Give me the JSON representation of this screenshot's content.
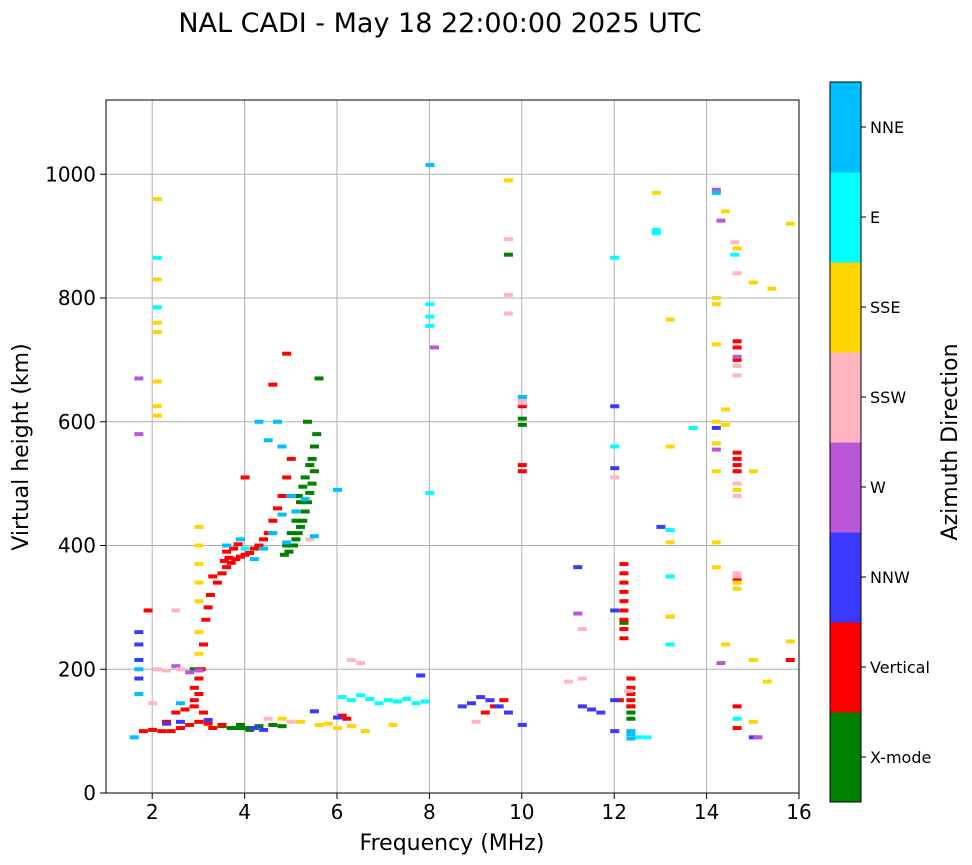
{
  "chart_data": {
    "type": "scatter",
    "title": "NAL CADI - May 18 22:00:00 2025 UTC",
    "xlabel": "Frequency (MHz)",
    "ylabel": "Virtual height (km)",
    "xlim": [
      1,
      16
    ],
    "ylim": [
      0,
      1120
    ],
    "xticks": [
      2,
      4,
      6,
      8,
      10,
      12,
      14,
      16
    ],
    "yticks": [
      0,
      200,
      400,
      600,
      800,
      1000
    ],
    "grid": true,
    "colorbar": {
      "label": "Azimuth Direction",
      "categories": [
        "X-mode",
        "Vertical",
        "NNW",
        "W",
        "SSW",
        "SSE",
        "E",
        "NNE"
      ],
      "colors": [
        "#008000",
        "#ff0000",
        "#3a3aff",
        "#b957d8",
        "#ffb6c1",
        "#ffd700",
        "#00ffff",
        "#00bfff"
      ]
    },
    "series": [
      {
        "name": "X-mode",
        "points": [
          [
            3.7,
            105
          ],
          [
            3.85,
            105
          ],
          [
            4.0,
            105
          ],
          [
            4.15,
            105
          ],
          [
            4.3,
            108
          ],
          [
            4.6,
            110
          ],
          [
            4.8,
            108
          ],
          [
            3.5,
            108
          ],
          [
            3.9,
            110
          ],
          [
            4.1,
            102
          ],
          [
            2.9,
            200
          ],
          [
            4.85,
            385
          ],
          [
            4.95,
            390
          ],
          [
            5.05,
            400
          ],
          [
            5.1,
            410
          ],
          [
            5.15,
            420
          ],
          [
            5.2,
            430
          ],
          [
            5.25,
            440
          ],
          [
            5.3,
            455
          ],
          [
            5.35,
            470
          ],
          [
            5.4,
            485
          ],
          [
            5.45,
            500
          ],
          [
            5.5,
            520
          ],
          [
            5.45,
            540
          ],
          [
            5.5,
            560
          ],
          [
            5.55,
            580
          ],
          [
            5.2,
            470
          ],
          [
            5.3,
            510
          ],
          [
            5.4,
            530
          ],
          [
            5.1,
            440
          ],
          [
            5.0,
            420
          ],
          [
            4.9,
            400
          ],
          [
            5.35,
            600
          ],
          [
            5.15,
            480
          ],
          [
            5.25,
            495
          ],
          [
            5.6,
            670
          ],
          [
            9.7,
            870
          ],
          [
            10.0,
            605
          ],
          [
            10.0,
            595
          ],
          [
            12.2,
            275
          ],
          [
            12.35,
            120
          ],
          [
            12.35,
            130
          ],
          [
            12.35,
            140
          ],
          [
            13.2,
            285
          ]
        ]
      },
      {
        "name": "Vertical",
        "points": [
          [
            3.4,
            340
          ],
          [
            3.5,
            355
          ],
          [
            3.6,
            365
          ],
          [
            3.7,
            372
          ],
          [
            3.8,
            378
          ],
          [
            3.9,
            382
          ],
          [
            4.0,
            385
          ],
          [
            4.1,
            388
          ],
          [
            4.2,
            395
          ],
          [
            4.3,
            400
          ],
          [
            4.4,
            410
          ],
          [
            4.5,
            420
          ],
          [
            4.6,
            440
          ],
          [
            4.7,
            460
          ],
          [
            4.8,
            480
          ],
          [
            4.9,
            510
          ],
          [
            5.0,
            540
          ],
          [
            3.55,
            375
          ],
          [
            3.65,
            380
          ],
          [
            3.75,
            395
          ],
          [
            3.85,
            402
          ],
          [
            3.6,
            390
          ],
          [
            3.3,
            350
          ],
          [
            3.25,
            320
          ],
          [
            3.15,
            280
          ],
          [
            3.1,
            240
          ],
          [
            3.05,
            200
          ],
          [
            3.0,
            160
          ],
          [
            3.2,
            300
          ],
          [
            3.0,
            185
          ],
          [
            2.4,
            100
          ],
          [
            2.6,
            105
          ],
          [
            2.8,
            110
          ],
          [
            3.0,
            115
          ],
          [
            3.2,
            112
          ],
          [
            2.3,
            115
          ],
          [
            2.5,
            130
          ],
          [
            2.7,
            135
          ],
          [
            2.9,
            140
          ],
          [
            3.1,
            130
          ],
          [
            2.2,
            100
          ],
          [
            2.0,
            102
          ],
          [
            1.8,
            100
          ],
          [
            2.9,
            170
          ],
          [
            2.9,
            150
          ],
          [
            3.3,
            105
          ],
          [
            3.5,
            110
          ],
          [
            1.9,
            295
          ],
          [
            4.0,
            510
          ],
          [
            4.9,
            710
          ],
          [
            4.6,
            660
          ],
          [
            6.1,
            125
          ],
          [
            6.2,
            120
          ],
          [
            9.2,
            130
          ],
          [
            9.4,
            140
          ],
          [
            9.6,
            150
          ],
          [
            10.0,
            530
          ],
          [
            10.0,
            520
          ],
          [
            10.0,
            625
          ],
          [
            12.2,
            370
          ],
          [
            12.2,
            355
          ],
          [
            12.2,
            340
          ],
          [
            12.2,
            325
          ],
          [
            12.2,
            310
          ],
          [
            12.2,
            295
          ],
          [
            12.2,
            280
          ],
          [
            12.2,
            265
          ],
          [
            12.2,
            250
          ],
          [
            12.35,
            185
          ],
          [
            12.35,
            170
          ],
          [
            12.35,
            160
          ],
          [
            12.35,
            150
          ],
          [
            12.35,
            140
          ],
          [
            14.65,
            550
          ],
          [
            14.65,
            540
          ],
          [
            14.65,
            530
          ],
          [
            14.65,
            520
          ],
          [
            14.65,
            880
          ],
          [
            14.65,
            730
          ],
          [
            14.65,
            720
          ],
          [
            14.65,
            700
          ],
          [
            14.65,
            345
          ],
          [
            14.65,
            105
          ],
          [
            14.65,
            140
          ],
          [
            15.8,
            215
          ],
          [
            12.1,
            150
          ]
        ]
      },
      {
        "name": "NNW",
        "points": [
          [
            1.7,
            260
          ],
          [
            1.7,
            240
          ],
          [
            1.7,
            215
          ],
          [
            1.7,
            185
          ],
          [
            2.3,
            112
          ],
          [
            2.6,
            115
          ],
          [
            3.2,
            118
          ],
          [
            4.2,
            105
          ],
          [
            4.4,
            102
          ],
          [
            5.5,
            132
          ],
          [
            6.0,
            122
          ],
          [
            7.8,
            190
          ],
          [
            8.7,
            140
          ],
          [
            8.9,
            145
          ],
          [
            9.1,
            155
          ],
          [
            9.3,
            150
          ],
          [
            9.5,
            140
          ],
          [
            9.7,
            130
          ],
          [
            10.0,
            110
          ],
          [
            11.2,
            365
          ],
          [
            11.3,
            140
          ],
          [
            11.5,
            135
          ],
          [
            11.7,
            130
          ],
          [
            12.0,
            625
          ],
          [
            12.0,
            525
          ],
          [
            12.0,
            295
          ],
          [
            12.0,
            100
          ],
          [
            12.0,
            150
          ],
          [
            13.0,
            430
          ],
          [
            14.2,
            590
          ],
          [
            15.0,
            90
          ]
        ]
      },
      {
        "name": "W",
        "points": [
          [
            1.7,
            670
          ],
          [
            1.7,
            580
          ],
          [
            2.5,
            205
          ],
          [
            2.8,
            195
          ],
          [
            3.0,
            198
          ],
          [
            8.1,
            720
          ],
          [
            11.2,
            290
          ],
          [
            14.2,
            555
          ],
          [
            14.2,
            975
          ],
          [
            14.3,
            925
          ],
          [
            14.3,
            210
          ],
          [
            14.65,
            705
          ],
          [
            15.1,
            90
          ]
        ]
      },
      {
        "name": "SSW",
        "points": [
          [
            2.1,
            200
          ],
          [
            2.3,
            198
          ],
          [
            2.6,
            200
          ],
          [
            2.5,
            295
          ],
          [
            2.0,
            145
          ],
          [
            4.5,
            120
          ],
          [
            5.0,
            115
          ],
          [
            5.4,
            410
          ],
          [
            6.3,
            215
          ],
          [
            6.5,
            210
          ],
          [
            9.7,
            895
          ],
          [
            9.7,
            805
          ],
          [
            9.7,
            775
          ],
          [
            9.0,
            115
          ],
          [
            10.0,
            635
          ],
          [
            10.0,
            630
          ],
          [
            11.3,
            185
          ],
          [
            11.3,
            265
          ],
          [
            11.0,
            180
          ],
          [
            12.0,
            510
          ],
          [
            12.3,
            165
          ],
          [
            13.2,
            285
          ],
          [
            14.65,
            840
          ],
          [
            14.65,
            690
          ],
          [
            14.65,
            675
          ],
          [
            14.65,
            500
          ],
          [
            14.65,
            480
          ],
          [
            14.65,
            355
          ],
          [
            14.65,
            350
          ],
          [
            14.6,
            890
          ]
        ]
      },
      {
        "name": "SSE",
        "points": [
          [
            2.1,
            960
          ],
          [
            2.1,
            830
          ],
          [
            2.1,
            760
          ],
          [
            2.1,
            745
          ],
          [
            2.1,
            665
          ],
          [
            2.1,
            625
          ],
          [
            2.1,
            610
          ],
          [
            3.0,
            430
          ],
          [
            3.0,
            400
          ],
          [
            3.0,
            370
          ],
          [
            3.0,
            340
          ],
          [
            3.0,
            310
          ],
          [
            3.0,
            260
          ],
          [
            3.0,
            225
          ],
          [
            4.8,
            120
          ],
          [
            5.2,
            115
          ],
          [
            5.6,
            110
          ],
          [
            5.8,
            112
          ],
          [
            6.0,
            105
          ],
          [
            6.3,
            108
          ],
          [
            6.6,
            100
          ],
          [
            7.2,
            110
          ],
          [
            9.7,
            990
          ],
          [
            12.9,
            970
          ],
          [
            13.2,
            765
          ],
          [
            13.2,
            560
          ],
          [
            13.2,
            405
          ],
          [
            13.2,
            285
          ],
          [
            14.2,
            800
          ],
          [
            14.2,
            790
          ],
          [
            14.2,
            725
          ],
          [
            14.2,
            600
          ],
          [
            14.2,
            565
          ],
          [
            14.2,
            520
          ],
          [
            14.2,
            405
          ],
          [
            14.2,
            365
          ],
          [
            14.4,
            940
          ],
          [
            14.4,
            620
          ],
          [
            14.4,
            595
          ],
          [
            14.4,
            240
          ],
          [
            14.65,
            880
          ],
          [
            14.65,
            490
          ],
          [
            14.65,
            340
          ],
          [
            14.65,
            330
          ],
          [
            15.0,
            825
          ],
          [
            15.0,
            520
          ],
          [
            15.0,
            215
          ],
          [
            15.0,
            115
          ],
          [
            15.3,
            180
          ],
          [
            15.4,
            815
          ],
          [
            15.8,
            920
          ],
          [
            15.8,
            245
          ]
        ]
      },
      {
        "name": "E",
        "points": [
          [
            2.1,
            865
          ],
          [
            2.1,
            785
          ],
          [
            4.0,
            395
          ],
          [
            6.1,
            155
          ],
          [
            6.3,
            150
          ],
          [
            6.5,
            158
          ],
          [
            6.7,
            152
          ],
          [
            6.9,
            145
          ],
          [
            7.1,
            150
          ],
          [
            7.3,
            148
          ],
          [
            7.5,
            152
          ],
          [
            7.7,
            145
          ],
          [
            7.9,
            148
          ],
          [
            8.0,
            790
          ],
          [
            8.0,
            770
          ],
          [
            8.0,
            755
          ],
          [
            8.0,
            485
          ],
          [
            10.0,
            640
          ],
          [
            12.0,
            865
          ],
          [
            12.0,
            560
          ],
          [
            12.5,
            90
          ],
          [
            12.7,
            90
          ],
          [
            12.9,
            910
          ],
          [
            12.9,
            905
          ],
          [
            13.2,
            425
          ],
          [
            13.2,
            350
          ],
          [
            13.2,
            240
          ],
          [
            13.7,
            590
          ],
          [
            14.6,
            870
          ],
          [
            14.65,
            120
          ]
        ]
      },
      {
        "name": "NNE",
        "points": [
          [
            1.6,
            90
          ],
          [
            1.7,
            200
          ],
          [
            1.7,
            160
          ],
          [
            2.6,
            145
          ],
          [
            3.6,
            400
          ],
          [
            3.9,
            410
          ],
          [
            4.2,
            378
          ],
          [
            4.4,
            395
          ],
          [
            4.6,
            420
          ],
          [
            4.8,
            450
          ],
          [
            5.0,
            480
          ],
          [
            4.8,
            560
          ],
          [
            4.5,
            570
          ],
          [
            4.7,
            600
          ],
          [
            4.3,
            600
          ],
          [
            4.9,
            405
          ],
          [
            5.1,
            455
          ],
          [
            5.3,
            475
          ],
          [
            5.5,
            415
          ],
          [
            6.0,
            490
          ],
          [
            8.0,
            1015
          ],
          [
            10.0,
            640
          ],
          [
            12.35,
            100
          ],
          [
            12.35,
            95
          ],
          [
            12.35,
            88
          ],
          [
            14.2,
            970
          ]
        ]
      }
    ]
  }
}
